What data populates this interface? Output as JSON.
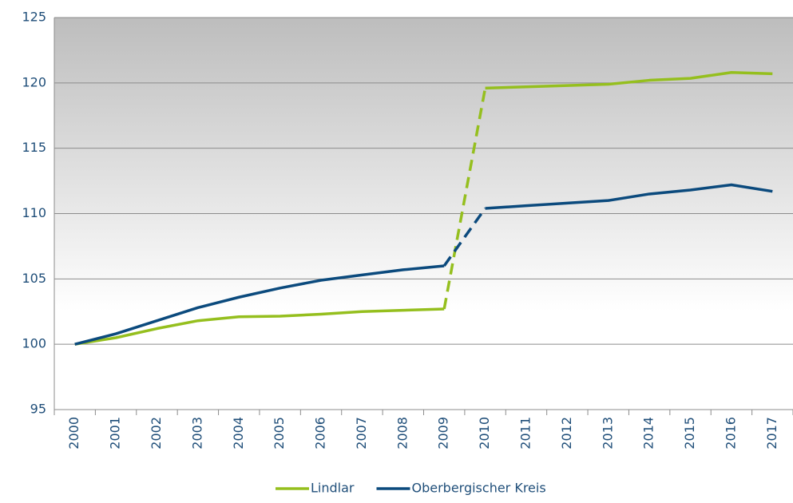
{
  "chart_data": {
    "type": "line",
    "categories": [
      "2000",
      "2001",
      "2002",
      "2003",
      "2004",
      "2005",
      "2006",
      "2007",
      "2008",
      "2009",
      "2010",
      "2011",
      "2012",
      "2013",
      "2014",
      "2015",
      "2016",
      "2017"
    ],
    "series": [
      {
        "name": "Lindlar",
        "color": "#95bf1e",
        "values": [
          100,
          100.5,
          101.2,
          101.8,
          102.1,
          102.15,
          102.3,
          102.5,
          102.6,
          102.7,
          119.6,
          119.7,
          119.8,
          119.9,
          120.2,
          120.35,
          120.8,
          120.7
        ]
      },
      {
        "name": "Oberbergischer Kreis",
        "color": "#0b4a7d",
        "values": [
          100,
          100.8,
          101.8,
          102.8,
          103.6,
          104.3,
          104.9,
          105.3,
          105.7,
          106.0,
          110.4,
          110.6,
          110.8,
          111.0,
          111.5,
          111.8,
          112.2,
          111.7
        ]
      }
    ],
    "dashed_segment": [
      9,
      10
    ],
    "ylim": [
      95,
      125
    ],
    "yticks": [
      95,
      100,
      105,
      110,
      115,
      120,
      125
    ],
    "grid": true,
    "legend": "bottom"
  }
}
